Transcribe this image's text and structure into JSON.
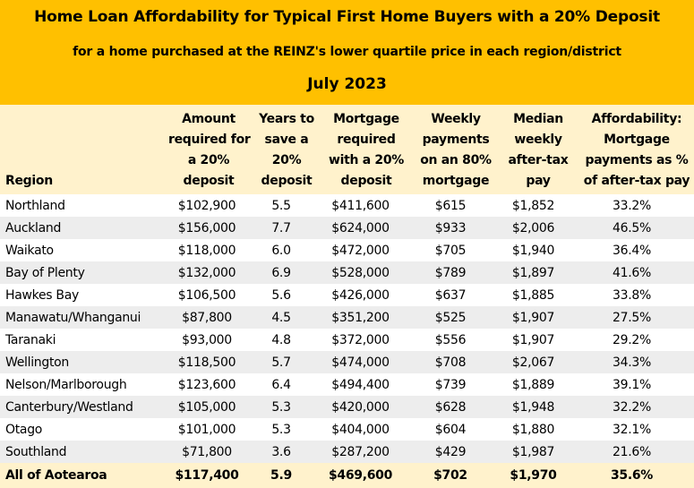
{
  "header": {
    "title": "Home Loan Affordability for Typical First Home Buyers with a 20% Deposit",
    "subtitle": "for a home purchased at the REINZ's lower quartile price in each region/district",
    "date": "July 2023"
  },
  "columns": [
    [
      "Region"
    ],
    [
      "Amount",
      "required for",
      "a 20%",
      "deposit"
    ],
    [
      "Years to",
      "save a",
      "20%",
      "deposit"
    ],
    [
      "Mortgage",
      "required",
      "with a 20%",
      "deposit"
    ],
    [
      "Weekly",
      "payments",
      "on an 80%",
      "mortgage"
    ],
    [
      "Median",
      "weekly",
      "after-tax",
      "pay"
    ],
    [
      "Affordability:",
      "Mortgage",
      "payments as %",
      "of after-tax pay"
    ]
  ],
  "rows": [
    [
      "Northland",
      "$102,900",
      "5.5",
      "$411,600",
      "$615",
      "$1,852",
      "33.2%"
    ],
    [
      "Auckland",
      "$156,000",
      "7.7",
      "$624,000",
      "$933",
      "$2,006",
      "46.5%"
    ],
    [
      "Waikato",
      "$118,000",
      "6.0",
      "$472,000",
      "$705",
      "$1,940",
      "36.4%"
    ],
    [
      "Bay of Plenty",
      "$132,000",
      "6.9",
      "$528,000",
      "$789",
      "$1,897",
      "41.6%"
    ],
    [
      "Hawkes Bay",
      "$106,500",
      "5.6",
      "$426,000",
      "$637",
      "$1,885",
      "33.8%"
    ],
    [
      "Manawatu/Whanganui",
      "$87,800",
      "4.5",
      "$351,200",
      "$525",
      "$1,907",
      "27.5%"
    ],
    [
      "Taranaki",
      "$93,000",
      "4.8",
      "$372,000",
      "$556",
      "$1,907",
      "29.2%"
    ],
    [
      "Wellington",
      "$118,500",
      "5.7",
      "$474,000",
      "$708",
      "$2,067",
      "34.3%"
    ],
    [
      "Nelson/Marlborough",
      "$123,600",
      "6.4",
      "$494,400",
      "$739",
      "$1,889",
      "39.1%"
    ],
    [
      "Canterbury/Westland",
      "$105,000",
      "5.3",
      "$420,000",
      "$628",
      "$1,948",
      "32.2%"
    ],
    [
      "Otago",
      "$101,000",
      "5.3",
      "$404,000",
      "$604",
      "$1,880",
      "32.1%"
    ],
    [
      "Southland",
      "$71,800",
      "3.6",
      "$287,200",
      "$429",
      "$1,987",
      "21.6%"
    ]
  ],
  "total": [
    "All of Aotearoa",
    "$117,400",
    "5.9",
    "$469,600",
    "$702",
    "$1,970",
    "35.6%"
  ],
  "colors": {
    "banner": "#ffc000",
    "header_fill": "#fff2cc",
    "stripe": "#ededed"
  }
}
